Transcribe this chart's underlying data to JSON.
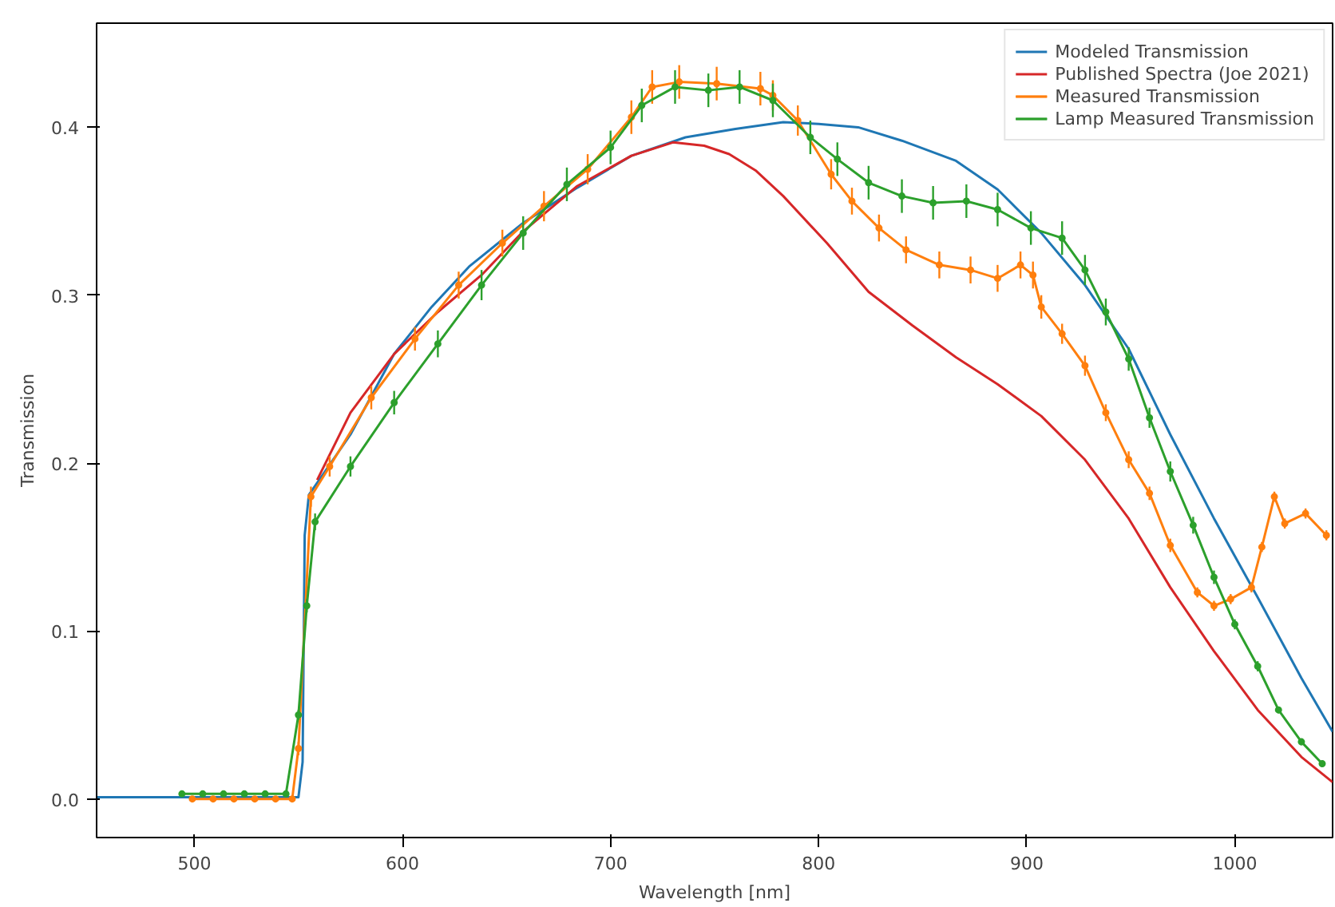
{
  "chart_data": {
    "type": "line",
    "xlabel": "Wavelength [nm]",
    "ylabel": "Transmission",
    "xlim": [
      453,
      1047
    ],
    "ylim": [
      -0.023,
      0.462
    ],
    "xticks": [
      500,
      600,
      700,
      800,
      900,
      1000
    ],
    "yticks": [
      {
        "value": 0,
        "label": "0.0"
      },
      {
        "value": 0.1,
        "label": "0.1"
      },
      {
        "value": 0.2,
        "label": "0.2"
      },
      {
        "value": 0.3,
        "label": "0.3"
      },
      {
        "value": 0.4,
        "label": "0.4"
      }
    ],
    "grid": false,
    "legend": "top right",
    "series": [
      {
        "name": "Modeled Transmission",
        "color": "#1f77b4",
        "marker": "none",
        "x": [
          453,
          550,
          552,
          553,
          555,
          575,
          596,
          614,
          632,
          658,
          684,
          710,
          736,
          760,
          783,
          800,
          819,
          840,
          866,
          886,
          907,
          928,
          949,
          969,
          990,
          1011,
          1032,
          1047
        ],
        "values": [
          0.001,
          0.001,
          0.022,
          0.157,
          0.181,
          0.217,
          0.265,
          0.293,
          0.317,
          0.343,
          0.364,
          0.383,
          0.394,
          0.399,
          0.403,
          0.402,
          0.4,
          0.392,
          0.38,
          0.363,
          0.337,
          0.306,
          0.268,
          0.217,
          0.167,
          0.12,
          0.072,
          0.04
        ]
      },
      {
        "name": "Published Spectra (Joe 2021)",
        "color": "#d62728",
        "marker": "none",
        "x": [
          559,
          575,
          596,
          617,
          638,
          658,
          684,
          710,
          730,
          745,
          757,
          770,
          783,
          804,
          824,
          845,
          866,
          886,
          907,
          928,
          949,
          969,
          990,
          1011,
          1032,
          1047
        ],
        "values": [
          0.19,
          0.23,
          0.265,
          0.29,
          0.312,
          0.338,
          0.365,
          0.383,
          0.391,
          0.389,
          0.384,
          0.374,
          0.359,
          0.331,
          0.302,
          0.282,
          0.263,
          0.247,
          0.228,
          0.202,
          0.167,
          0.126,
          0.088,
          0.053,
          0.025,
          0.01
        ]
      },
      {
        "name": "Measured Transmission",
        "color": "#ff7f0e",
        "marker": "circle",
        "x": [
          499,
          509,
          519,
          529,
          539,
          547,
          550,
          556,
          565,
          585,
          606,
          627,
          648,
          668,
          689,
          710,
          720,
          733,
          751,
          772,
          778,
          790,
          806,
          816,
          829,
          842,
          858,
          873,
          886,
          897,
          903,
          907,
          917,
          928,
          938,
          949,
          959,
          969,
          982,
          990,
          998,
          1008,
          1013,
          1019,
          1024,
          1034,
          1044
        ],
        "values": [
          0.0,
          0.0,
          0.0,
          0.0,
          0.0,
          0.0,
          0.03,
          0.18,
          0.198,
          0.239,
          0.274,
          0.306,
          0.331,
          0.353,
          0.375,
          0.406,
          0.424,
          0.427,
          0.426,
          0.423,
          0.419,
          0.404,
          0.372,
          0.356,
          0.34,
          0.327,
          0.318,
          0.315,
          0.31,
          0.318,
          0.312,
          0.293,
          0.277,
          0.258,
          0.23,
          0.202,
          0.182,
          0.151,
          0.123,
          0.115,
          0.119,
          0.126,
          0.15,
          0.18,
          0.164,
          0.17,
          0.157
        ],
        "errors": [
          0.001,
          0.001,
          0.001,
          0.001,
          0.001,
          0.001,
          0.004,
          0.006,
          0.006,
          0.007,
          0.007,
          0.008,
          0.008,
          0.009,
          0.009,
          0.01,
          0.01,
          0.01,
          0.01,
          0.01,
          0.009,
          0.009,
          0.009,
          0.008,
          0.008,
          0.008,
          0.008,
          0.008,
          0.008,
          0.008,
          0.008,
          0.007,
          0.006,
          0.006,
          0.005,
          0.005,
          0.004,
          0.004,
          0.003,
          0.003,
          0.003,
          0.003,
          0.003,
          0.003,
          0.003,
          0.003,
          0.003
        ]
      },
      {
        "name": "Lamp Measured Transmission",
        "color": "#2ca02c",
        "marker": "circle",
        "x": [
          494,
          504,
          514,
          524,
          534,
          544,
          550,
          554,
          558,
          575,
          596,
          617,
          638,
          658,
          679,
          700,
          715,
          731,
          747,
          762,
          778,
          796,
          809,
          824,
          840,
          855,
          871,
          886,
          902,
          917,
          928,
          938,
          949,
          959,
          969,
          980,
          990,
          1000,
          1011,
          1021,
          1032,
          1042
        ],
        "values": [
          0.003,
          0.003,
          0.003,
          0.003,
          0.003,
          0.003,
          0.05,
          0.115,
          0.165,
          0.198,
          0.236,
          0.271,
          0.306,
          0.337,
          0.366,
          0.388,
          0.413,
          0.424,
          0.422,
          0.424,
          0.416,
          0.394,
          0.381,
          0.367,
          0.359,
          0.355,
          0.356,
          0.351,
          0.34,
          0.334,
          0.315,
          0.29,
          0.262,
          0.227,
          0.195,
          0.163,
          0.132,
          0.104,
          0.079,
          0.053,
          0.034,
          0.021
        ],
        "errors": [
          0.001,
          0.001,
          0.001,
          0.001,
          0.001,
          0.001,
          0.003,
          0.004,
          0.005,
          0.006,
          0.007,
          0.008,
          0.009,
          0.01,
          0.01,
          0.01,
          0.01,
          0.01,
          0.01,
          0.01,
          0.01,
          0.01,
          0.01,
          0.01,
          0.01,
          0.01,
          0.01,
          0.01,
          0.01,
          0.01,
          0.009,
          0.008,
          0.007,
          0.006,
          0.006,
          0.005,
          0.004,
          0.003,
          0.003,
          0.002,
          0.002,
          0.002
        ]
      }
    ]
  }
}
